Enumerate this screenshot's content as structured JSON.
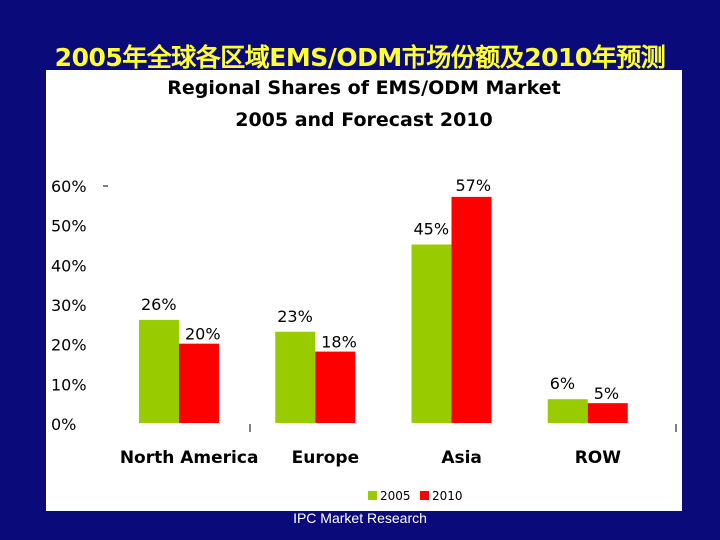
{
  "slide_title": "2005年全球各区域EMS/ODM市场份额及2010年预测",
  "source": "IPC Market Research",
  "colors": {
    "background": "#0a0a7a",
    "title": "#ffff33",
    "series_2005": "#99cc00",
    "series_2010": "#ff0000"
  },
  "chart_data": {
    "type": "bar",
    "title": "Regional Shares of EMS/ODM Market",
    "subtitle": "2005 and Forecast 2010",
    "categories": [
      "North America",
      "Europe",
      "Asia",
      "ROW"
    ],
    "series": [
      {
        "name": "2005",
        "values": [
          26,
          23,
          45,
          6
        ],
        "labels": [
          "26%",
          "23%",
          "45%",
          "6%"
        ],
        "color": "#99cc00"
      },
      {
        "name": "2010",
        "values": [
          20,
          18,
          57,
          5
        ],
        "labels": [
          "20%",
          "18%",
          "57%",
          "5%"
        ],
        "color": "#ff0000"
      }
    ],
    "y_ticks": [
      0,
      10,
      20,
      30,
      40,
      50,
      60
    ],
    "y_tick_labels": [
      "0%",
      "10%",
      "20%",
      "30%",
      "40%",
      "50%",
      "60%"
    ],
    "ylim": [
      0,
      60
    ],
    "xlabel": "",
    "ylabel": "",
    "grid": false,
    "legend": "bottom"
  }
}
